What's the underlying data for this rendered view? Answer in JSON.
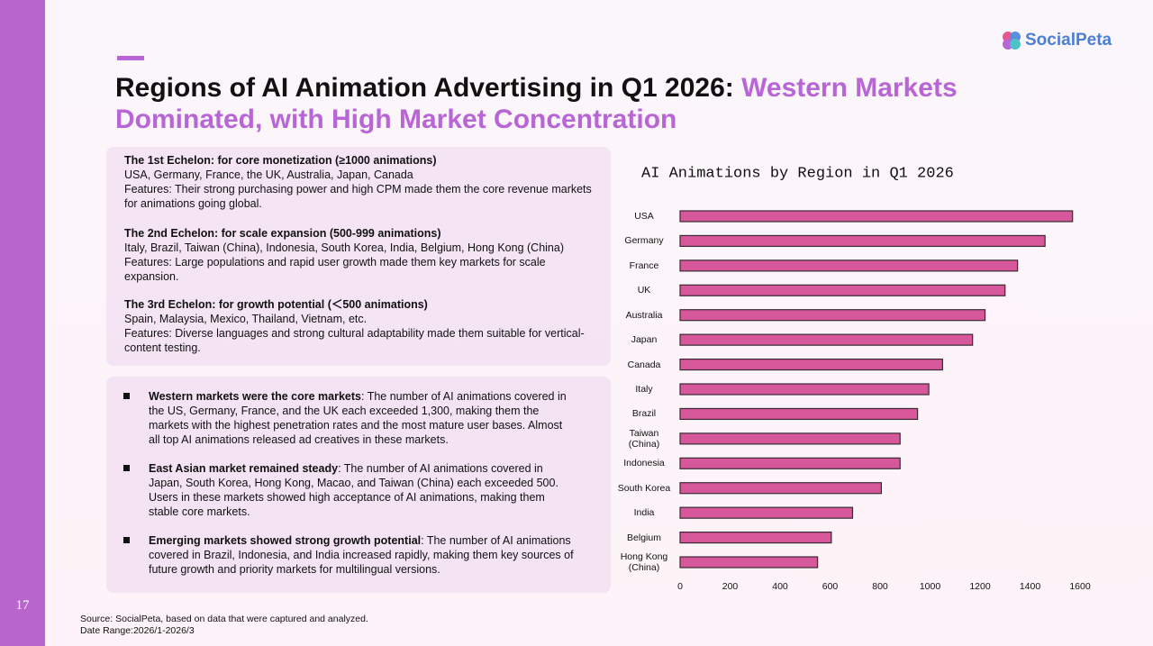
{
  "header": {
    "title": "Regions of AI Animation Advertising in Q1 2026:",
    "title_highlight": "Western Markets Dominated, with High Market Concentration",
    "logo": "SocialPeta",
    "page_number": "17"
  },
  "echelons": [
    {
      "heading": "The 1st Echelon: for core monetization (≥1000 animations)",
      "countries": "USA, Germany, France, the UK, Australia, Japan, Canada",
      "features": "Features: Their strong purchasing power and high CPM made them the core revenue markets for animations going global."
    },
    {
      "heading": "The 2nd Echelon: for scale expansion (500-999 animations)",
      "countries": "Italy, Brazil, Taiwan (China), Indonesia, South Korea, India, Belgium, Hong Kong (China)",
      "features": "Features: Large populations and rapid user growth made them key markets for scale expansion."
    },
    {
      "heading": "The 3rd Echelon: for growth potential (＜500 animations)",
      "countries": "Spain, Malaysia, Mexico, Thailand, Vietnam, etc.",
      "features": "Features: Diverse languages and strong cultural adaptability made them suitable for vertical-content testing."
    }
  ],
  "bullets": [
    {
      "lead": "Western markets were the core markets",
      "text": ": The number of AI animations covered in the US, Germany, France, and the UK each exceeded 1,300, making them the markets with the highest penetration rates and the most mature user bases. Almost all top AI animations released ad creatives in these markets."
    },
    {
      "lead": "East Asian market remained steady",
      "text": ": The number of AI animations covered in Japan, South Korea, Hong Kong, Macao, and Taiwan (China) each exceeded 500. Users in these markets showed high acceptance of AI animations, making them stable core markets."
    },
    {
      "lead": "Emerging markets showed strong growth potential",
      "text": ": The number of AI animations covered in Brazil, Indonesia, and India increased rapidly, making them key sources of future growth and priority markets for multilingual versions."
    }
  ],
  "footer": {
    "source": "Source: SocialPeta, based on data that were captured and analyzed.",
    "date_range": "Date Range:2026/1-2026/3"
  },
  "chart_data": {
    "type": "barh",
    "title": "AI Animations by Region in Q1 2026",
    "categories": [
      "USA",
      "Germany",
      "France",
      "UK",
      "Australia",
      "Japan",
      "Canada",
      "Italy",
      "Brazil",
      "Taiwan (China)",
      "Indonesia",
      "South Korea",
      "India",
      "Belgium",
      "Hong Kong (China)"
    ],
    "values": [
      1570,
      1460,
      1350,
      1300,
      1220,
      1170,
      1050,
      995,
      950,
      880,
      880,
      805,
      690,
      605,
      550
    ],
    "color": "#d6579a",
    "xlim": [
      0,
      1600
    ],
    "xticks": [
      0,
      200,
      400,
      600,
      800,
      1000,
      1200,
      1400,
      1600
    ]
  }
}
